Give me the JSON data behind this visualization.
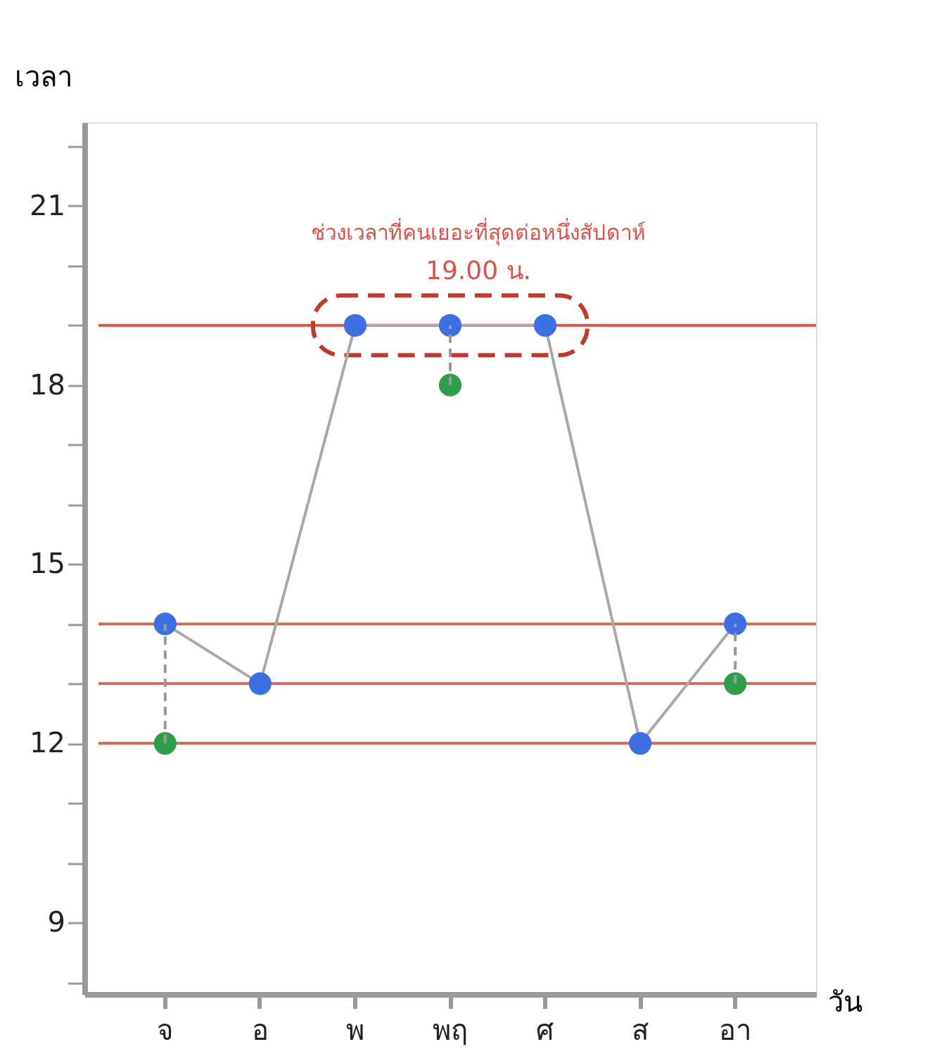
{
  "chart_data": {
    "type": "line",
    "xlabel": "วัน",
    "ylabel": "เวลา",
    "categories": [
      "จ",
      "อ",
      "พ",
      "พฤ",
      "ศ",
      "ส",
      "อา"
    ],
    "series": [
      {
        "type": "line",
        "color": "#3d6fe3",
        "values": [
          14,
          13,
          19,
          19,
          19,
          12,
          14
        ],
        "errors": [
          [
            12,
            14
          ],
          null,
          null,
          [
            18,
            19
          ],
          null,
          null,
          [
            13,
            14
          ]
        ]
      },
      {
        "type": "scatter",
        "color": "#2f9e4c",
        "values": [
          12,
          null,
          null,
          18,
          null,
          null,
          13
        ]
      }
    ],
    "ylim": [
      7.8,
      22.4
    ],
    "yticks": [
      {
        "value": 8,
        "label": null
      },
      9,
      {
        "value": 10,
        "label": null
      },
      {
        "value": 11,
        "label": null
      },
      12,
      {
        "value": 13,
        "label": null
      },
      {
        "value": 14,
        "label": null
      },
      15,
      {
        "value": 16,
        "label": null
      },
      {
        "value": 17,
        "label": null
      },
      18,
      {
        "value": 19,
        "label": null
      },
      {
        "value": 20,
        "label": null
      },
      21,
      {
        "value": 22,
        "label": null
      }
    ],
    "ref_lines": [
      {
        "axis": "y",
        "value": 19,
        "color": "#d9534a"
      },
      {
        "axis": "y",
        "value": 14,
        "color": "#c96a55"
      },
      {
        "axis": "y",
        "value": 13,
        "color": "#c96a55"
      },
      {
        "axis": "y",
        "value": 12,
        "color": "#c96a55"
      }
    ],
    "annotations": [
      "ช่วงเวลาที่คนเยอะที่สุดต่อหนึ่งสัปดาห์",
      "19.00 น."
    ],
    "grid": false,
    "marker": "circle",
    "line_style": "solid"
  }
}
